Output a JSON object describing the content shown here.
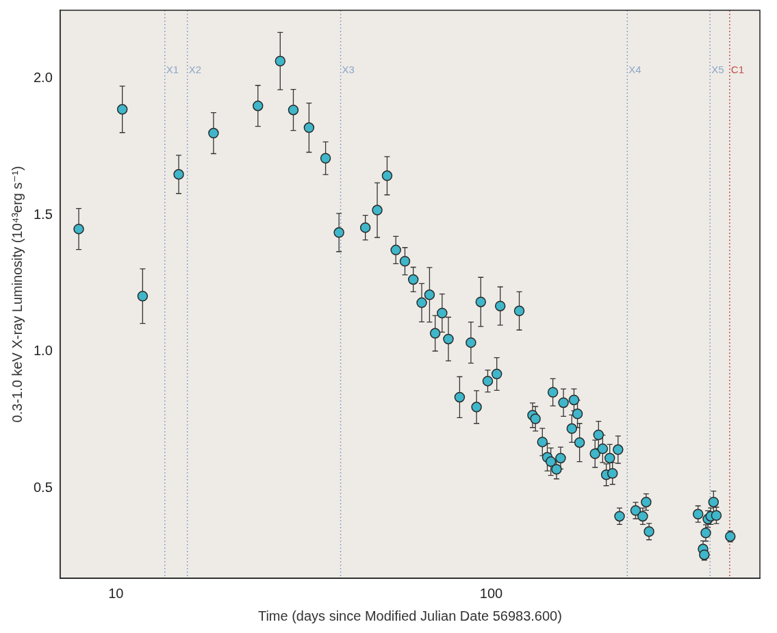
{
  "chart_data": {
    "type": "scatter",
    "x_label": "Time (days since Modified Julian Date 56983.600)",
    "y_label": "0.3-1.0 keV X-ray Luminosity (10⁴³erg s⁻¹)",
    "log": "x",
    "grid": false,
    "xlim": [
      7.1,
      520
    ],
    "xticks": [
      10,
      100
    ],
    "ylim": [
      0.17,
      2.25
    ],
    "yticks": [
      {
        "value": 0.5,
        "label": "0.5"
      },
      {
        "value": 1.0,
        "label": "1.0"
      },
      {
        "value": 1.5,
        "label": "1.5"
      },
      {
        "value": 2.0,
        "label": "2.0"
      }
    ],
    "marker": "circle",
    "color": "#3fb6c9",
    "x": [
      7.96,
      10.4,
      11.78,
      14.7,
      18.2,
      23.9,
      27.4,
      29.7,
      32.7,
      36.2,
      39.3,
      46.2,
      49.7,
      52.8,
      55.7,
      58.9,
      62.0,
      65.3,
      68.5,
      70.9,
      74.0,
      76.9,
      82.4,
      88.3,
      91.4,
      93.8,
      97.9,
      103.5,
      105.7,
      118.8,
      128.9,
      131.2,
      136.9,
      141.1,
      144.2,
      146.0,
      149.3,
      153.1,
      155.8,
      164.0,
      166.2,
      169.8,
      172.0,
      189.1,
      193.2,
      198.2,
      202.6,
      207.0,
      210.5,
      217.8,
      219.8,
      242.6,
      253.4,
      258.8,
      263.4,
      355.8,
      366.9,
      369.8,
      373.1,
      378.0,
      384.6,
      391.3,
      398.1,
      433.6
    ],
    "values": [
      1.449,
      1.887,
      1.203,
      1.649,
      1.8,
      1.9,
      2.064,
      1.885,
      1.82,
      1.708,
      1.436,
      1.454,
      1.518,
      1.644,
      1.372,
      1.331,
      1.264,
      1.179,
      1.208,
      1.067,
      1.141,
      1.046,
      0.833,
      1.033,
      0.797,
      1.182,
      0.892,
      0.918,
      1.167,
      1.149,
      0.767,
      0.754,
      0.669,
      0.613,
      0.597,
      0.851,
      0.569,
      0.61,
      0.813,
      0.718,
      0.823,
      0.772,
      0.667,
      0.626,
      0.695,
      0.644,
      0.549,
      0.61,
      0.554,
      0.641,
      0.397,
      0.418,
      0.397,
      0.449,
      0.341,
      0.405,
      0.277,
      0.256,
      0.336,
      0.387,
      0.397,
      0.449,
      0.4,
      0.323
    ],
    "errors": [
      0.075,
      0.085,
      0.1,
      0.07,
      0.075,
      0.075,
      0.105,
      0.075,
      0.09,
      0.06,
      0.07,
      0.045,
      0.1,
      0.07,
      0.05,
      0.05,
      0.045,
      0.07,
      0.1,
      0.065,
      0.07,
      0.08,
      0.075,
      0.075,
      0.06,
      0.09,
      0.04,
      0.06,
      0.07,
      0.07,
      0.045,
      0.045,
      0.05,
      0.05,
      0.05,
      0.05,
      0.035,
      0.04,
      0.05,
      0.05,
      0.04,
      0.05,
      0.07,
      0.05,
      0.05,
      0.05,
      0.04,
      0.05,
      0.04,
      0.05,
      0.03,
      0.03,
      0.03,
      0.03,
      0.03,
      0.03,
      0.03,
      0.02,
      0.03,
      0.03,
      0.03,
      0.04,
      0.03,
      0.02
    ],
    "vertical_lines": [
      {
        "x": 13.5,
        "label": "X1",
        "color": "#8ea5c9",
        "line_style": "dotted"
      },
      {
        "x": 15.5,
        "label": "X2",
        "color": "#8ea5c9",
        "line_style": "dotted"
      },
      {
        "x": 39.7,
        "label": "X3",
        "color": "#8ea5c9",
        "line_style": "dotted"
      },
      {
        "x": 230.5,
        "label": "X4",
        "color": "#8ea5c9",
        "line_style": "dotted"
      },
      {
        "x": 383,
        "label": "X5",
        "color": "#8ea5c9",
        "line_style": "dotted"
      },
      {
        "x": 432,
        "label": "C1",
        "color": "#c0504d",
        "line_style": "dotted"
      }
    ]
  }
}
